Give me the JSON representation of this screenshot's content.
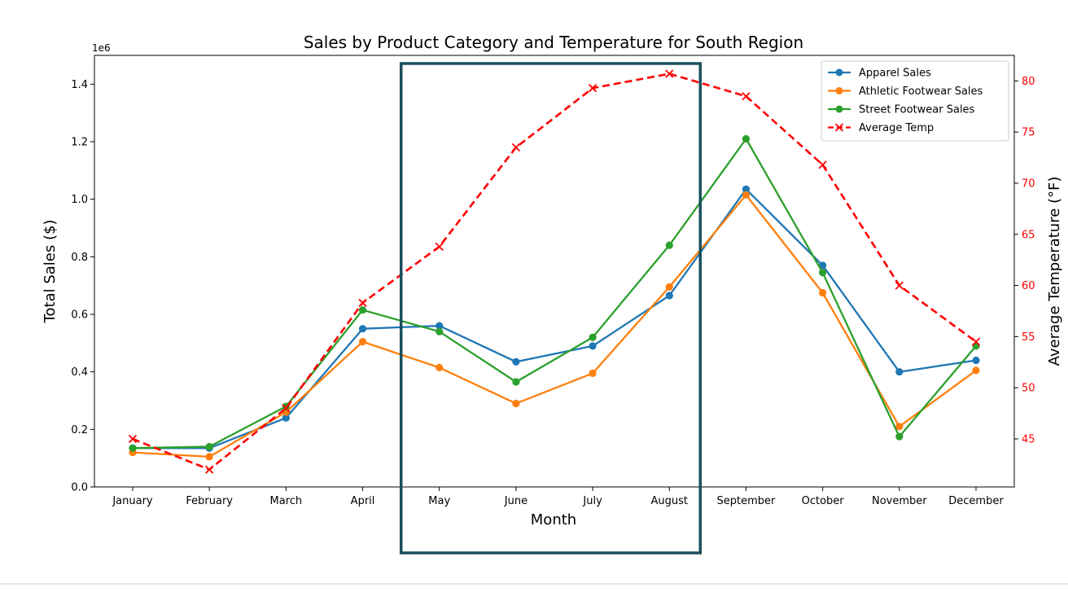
{
  "chart_data": {
    "type": "line",
    "title": "Sales by Product Category and Temperature for South Region",
    "xlabel": "Month",
    "ylabel": "Total Sales ($)",
    "y2label": "Average Temperature (°F)",
    "y_offset_text": "1e6",
    "categories": [
      "January",
      "February",
      "March",
      "April",
      "May",
      "June",
      "July",
      "August",
      "September",
      "October",
      "November",
      "December"
    ],
    "ylim": [
      0,
      1.5
    ],
    "y_ticks": [
      0.0,
      0.2,
      0.4,
      0.6,
      0.8,
      1.0,
      1.2,
      1.4
    ],
    "y_tick_labels": [
      "0.0",
      "0.2",
      "0.4",
      "0.6",
      "0.8",
      "1.0",
      "1.2",
      "1.4"
    ],
    "y2lim": [
      40.3,
      82.5
    ],
    "y2_ticks": [
      45,
      50,
      55,
      60,
      65,
      70,
      75,
      80
    ],
    "y2_tick_labels": [
      "45",
      "50",
      "55",
      "60",
      "65",
      "70",
      "75",
      "80"
    ],
    "series": [
      {
        "name": "Apparel Sales",
        "color": "#1f77b4",
        "marker": "circle",
        "style": "solid",
        "axis": "left",
        "values": [
          0.135,
          0.135,
          0.24,
          0.55,
          0.56,
          0.435,
          0.49,
          0.665,
          1.035,
          0.77,
          0.4,
          0.44
        ]
      },
      {
        "name": "Athletic Footwear Sales",
        "color": "#ff7f0e",
        "marker": "circle",
        "style": "solid",
        "axis": "left",
        "values": [
          0.12,
          0.105,
          0.26,
          0.505,
          0.415,
          0.29,
          0.395,
          0.695,
          1.015,
          0.675,
          0.21,
          0.405
        ]
      },
      {
        "name": "Street Footwear Sales",
        "color": "#2ca02c",
        "marker": "circle",
        "style": "solid",
        "axis": "left",
        "values": [
          0.135,
          0.14,
          0.28,
          0.615,
          0.54,
          0.365,
          0.52,
          0.84,
          1.21,
          0.745,
          0.175,
          0.49
        ]
      },
      {
        "name": "Average Temp",
        "color": "#ff0000",
        "marker": "x",
        "style": "dashed",
        "axis": "right",
        "values": [
          45.0,
          42.0,
          48.0,
          58.3,
          63.8,
          73.5,
          79.3,
          80.7,
          78.5,
          71.8,
          60.0,
          54.5
        ]
      }
    ],
    "legend_position": "top-right",
    "grid": false,
    "highlight_box": {
      "from": "May",
      "to": "August",
      "color": "#1a4f5c"
    }
  }
}
